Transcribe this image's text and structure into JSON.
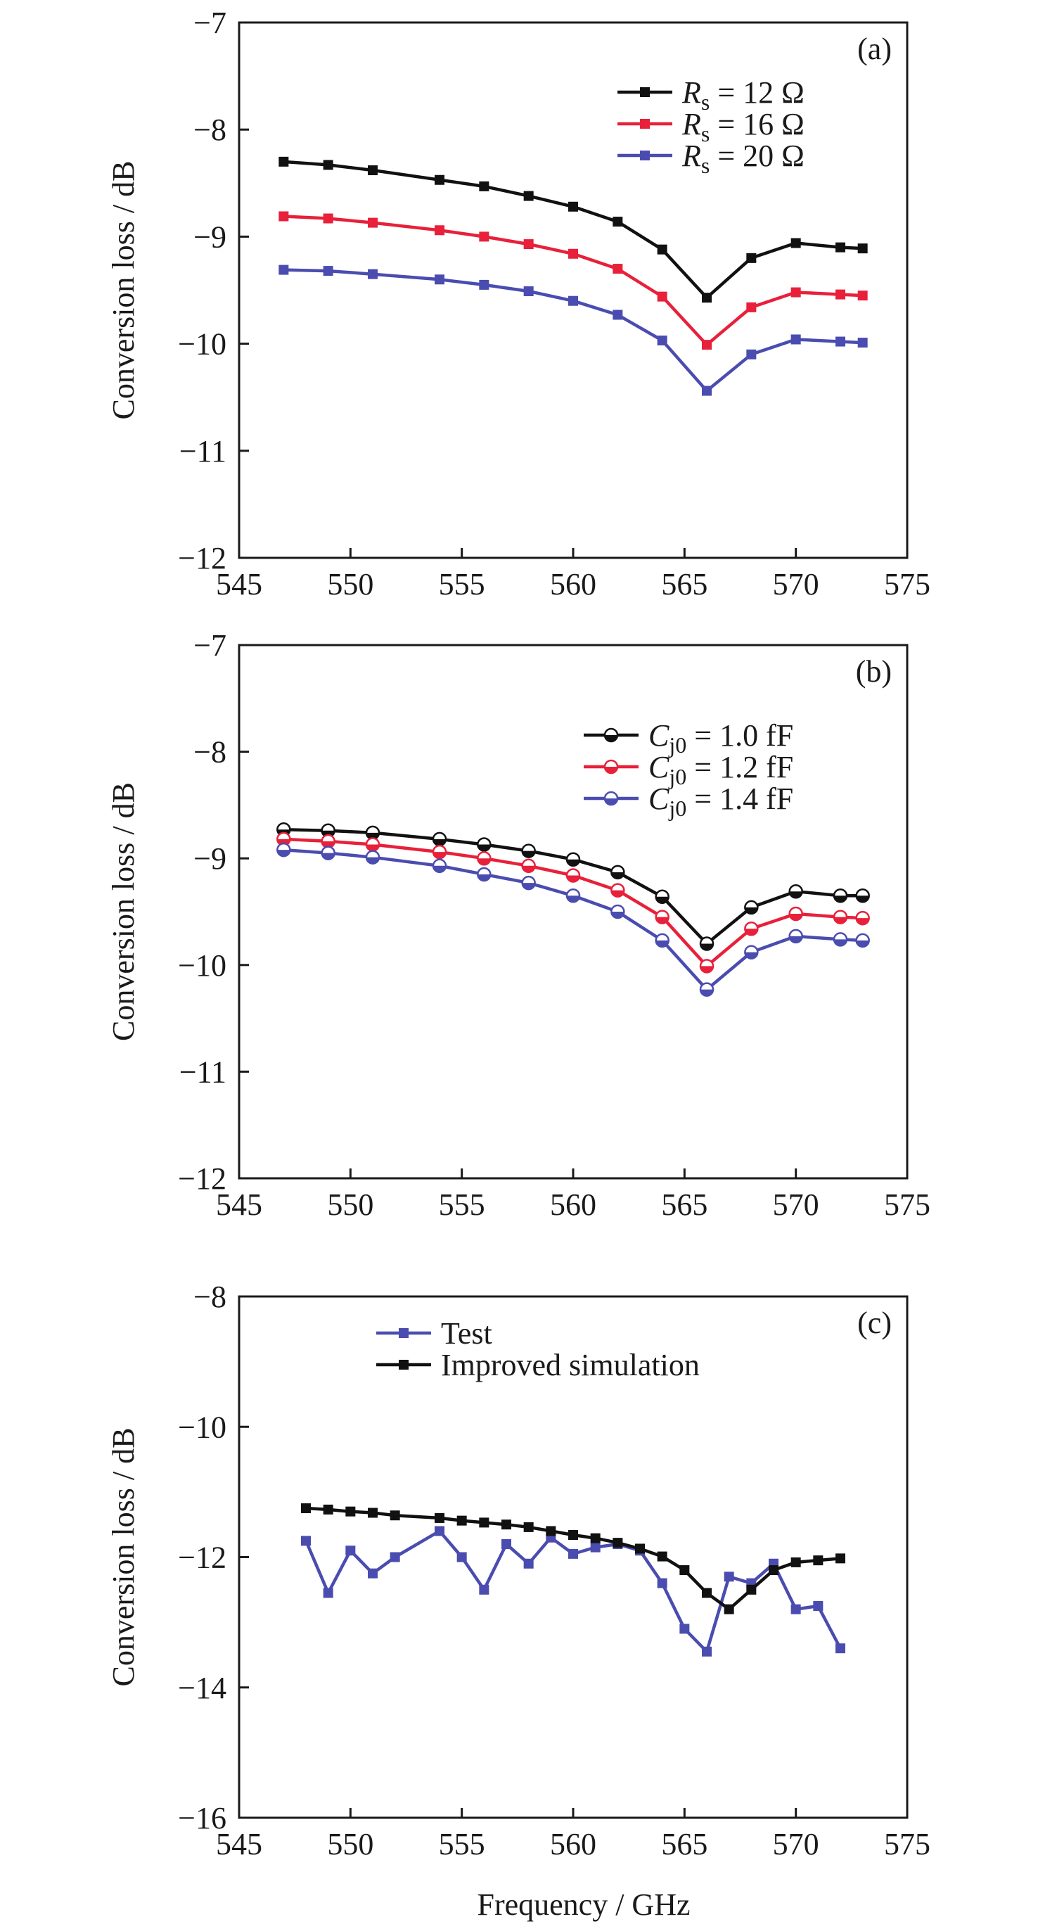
{
  "figure": {
    "xlabel": "Frequency / GHz"
  },
  "colors": {
    "black": "#111111",
    "red": "#e8203a",
    "blue": "#4a4cb0",
    "axis": "#1a1a1a"
  },
  "chart_data": [
    {
      "type": "line",
      "panel_label": "(a)",
      "ylabel": "Conversion loss / dB",
      "xlim": [
        545,
        575
      ],
      "ylim": [
        -12,
        -7
      ],
      "xticks": [
        545,
        550,
        555,
        560,
        565,
        570,
        575
      ],
      "yticks": [
        -12,
        -11,
        -10,
        -9,
        -8,
        -7
      ],
      "marker": "square",
      "series": [
        {
          "name_italic": "R",
          "name_sub": "s",
          "name_rest": " = 12 Ω",
          "color": "#111111",
          "x": [
            547,
            549,
            551,
            554,
            556,
            558,
            560,
            562,
            564,
            566,
            568,
            570,
            572,
            573
          ],
          "y": [
            -8.3,
            -8.33,
            -8.38,
            -8.47,
            -8.53,
            -8.62,
            -8.72,
            -8.86,
            -9.12,
            -9.57,
            -9.2,
            -9.06,
            -9.1,
            -9.11
          ]
        },
        {
          "name_italic": "R",
          "name_sub": "s",
          "name_rest": " = 16 Ω",
          "color": "#e8203a",
          "x": [
            547,
            549,
            551,
            554,
            556,
            558,
            560,
            562,
            564,
            566,
            568,
            570,
            572,
            573
          ],
          "y": [
            -8.81,
            -8.83,
            -8.87,
            -8.94,
            -9.0,
            -9.07,
            -9.16,
            -9.3,
            -9.56,
            -10.01,
            -9.66,
            -9.52,
            -9.54,
            -9.55
          ]
        },
        {
          "name_italic": "R",
          "name_sub": "s",
          "name_rest": " = 20 Ω",
          "color": "#4a4cb0",
          "x": [
            547,
            549,
            551,
            554,
            556,
            558,
            560,
            562,
            564,
            566,
            568,
            570,
            572,
            573
          ],
          "y": [
            -9.31,
            -9.32,
            -9.35,
            -9.4,
            -9.45,
            -9.51,
            -9.6,
            -9.73,
            -9.97,
            -10.44,
            -10.1,
            -9.96,
            -9.98,
            -9.99
          ]
        }
      ]
    },
    {
      "type": "line",
      "panel_label": "(b)",
      "ylabel": "Conversion loss / dB",
      "xlim": [
        545,
        575
      ],
      "ylim": [
        -12,
        -7
      ],
      "xticks": [
        545,
        550,
        555,
        560,
        565,
        570,
        575
      ],
      "yticks": [
        -12,
        -11,
        -10,
        -9,
        -8,
        -7
      ],
      "marker": "half-circle",
      "series": [
        {
          "name_italic": "C",
          "name_sub": "j0",
          "name_rest": " = 1.0 fF",
          "color": "#111111",
          "x": [
            547,
            549,
            551,
            554,
            556,
            558,
            560,
            562,
            564,
            566,
            568,
            570,
            572,
            573
          ],
          "y": [
            -8.73,
            -8.74,
            -8.76,
            -8.82,
            -8.87,
            -8.93,
            -9.01,
            -9.13,
            -9.36,
            -9.8,
            -9.46,
            -9.31,
            -9.35,
            -9.35
          ]
        },
        {
          "name_italic": "C",
          "name_sub": "j0",
          "name_rest": " = 1.2 fF",
          "color": "#e8203a",
          "x": [
            547,
            549,
            551,
            554,
            556,
            558,
            560,
            562,
            564,
            566,
            568,
            570,
            572,
            573
          ],
          "y": [
            -8.82,
            -8.84,
            -8.87,
            -8.94,
            -9.0,
            -9.07,
            -9.16,
            -9.3,
            -9.55,
            -10.01,
            -9.66,
            -9.52,
            -9.55,
            -9.56
          ]
        },
        {
          "name_italic": "C",
          "name_sub": "j0",
          "name_rest": " = 1.4 fF",
          "color": "#4a4cb0",
          "x": [
            547,
            549,
            551,
            554,
            556,
            558,
            560,
            562,
            564,
            566,
            568,
            570,
            572,
            573
          ],
          "y": [
            -8.92,
            -8.95,
            -8.99,
            -9.07,
            -9.15,
            -9.23,
            -9.35,
            -9.5,
            -9.77,
            -10.23,
            -9.88,
            -9.73,
            -9.76,
            -9.77
          ]
        }
      ]
    },
    {
      "type": "line",
      "panel_label": "(c)",
      "ylabel": "Conversion loss / dB",
      "xlim": [
        545,
        575
      ],
      "ylim": [
        -16,
        -8
      ],
      "xticks": [
        545,
        550,
        555,
        560,
        565,
        570,
        575
      ],
      "yticks": [
        -16,
        -14,
        -12,
        -10,
        -8
      ],
      "marker": "square",
      "series": [
        {
          "name_italic": "",
          "name_sub": "",
          "name_rest": "Test",
          "color": "#4a4cb0",
          "x": [
            548,
            549,
            550,
            551,
            552,
            554,
            555,
            556,
            557,
            558,
            559,
            560,
            561,
            562,
            563,
            564,
            565,
            566,
            567,
            568,
            569,
            570,
            571,
            572
          ],
          "y": [
            -11.75,
            -12.55,
            -11.9,
            -12.25,
            -12.0,
            -11.6,
            -12.0,
            -12.5,
            -11.8,
            -12.1,
            -11.7,
            -11.95,
            -11.85,
            -11.8,
            -11.9,
            -12.4,
            -13.1,
            -13.45,
            -12.3,
            -12.4,
            -12.1,
            -12.8,
            -12.75,
            -13.4
          ]
        },
        {
          "name_italic": "",
          "name_sub": "",
          "name_rest": "Improved simulation",
          "color": "#111111",
          "x": [
            548,
            549,
            550,
            551,
            552,
            554,
            555,
            556,
            557,
            558,
            559,
            560,
            561,
            562,
            563,
            564,
            565,
            566,
            567,
            568,
            569,
            570,
            571,
            572
          ],
          "y": [
            -11.25,
            -11.27,
            -11.3,
            -11.32,
            -11.36,
            -11.4,
            -11.44,
            -11.47,
            -11.5,
            -11.54,
            -11.6,
            -11.66,
            -11.71,
            -11.78,
            -11.87,
            -11.99,
            -12.2,
            -12.55,
            -12.8,
            -12.5,
            -12.2,
            -12.08,
            -12.05,
            -12.02
          ]
        }
      ]
    }
  ]
}
